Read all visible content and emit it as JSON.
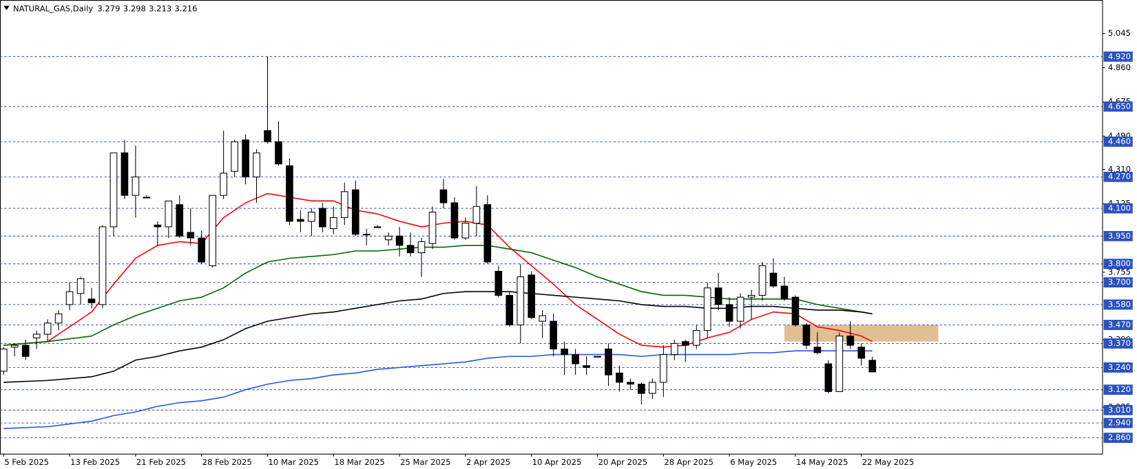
{
  "chart_data": {
    "type": "candlestick",
    "title": "NATURAL_GAS,Daily",
    "categories": [
      "5 Feb 2025",
      null,
      null,
      null,
      null,
      null,
      "13 Feb 2025",
      null,
      null,
      null,
      null,
      null,
      "21 Feb 2025",
      null,
      null,
      null,
      null,
      null,
      "28 Feb 2025",
      null,
      null,
      null,
      null,
      null,
      "10 Mar 2025",
      null,
      null,
      null,
      null,
      null,
      "18 Mar 2025",
      null,
      null,
      null,
      null,
      null,
      "25 Mar 2025",
      null,
      null,
      null,
      null,
      null,
      "2 Apr 2025",
      null,
      null,
      null,
      null,
      null,
      "10 Apr 2025",
      null,
      null,
      null,
      null,
      null,
      "20 Apr 2025",
      null,
      null,
      null,
      null,
      null,
      "28 Apr 2025",
      null,
      null,
      null,
      null,
      null,
      "6 May 2025",
      null,
      null,
      null,
      null,
      null,
      "14 May 2025",
      null,
      null,
      null,
      null,
      null,
      "22 May 2025",
      null
    ],
    "open": [
      3.22,
      3.35,
      3.36,
      3.4,
      3.42,
      3.48,
      3.58,
      3.64,
      3.61,
      3.58,
      4.0,
      4.4,
      4.17,
      4.16,
      4.01,
      4.0,
      4.12,
      3.97,
      3.94,
      3.79,
      4.17,
      4.3,
      4.47,
      4.27,
      4.52,
      4.46,
      4.33,
      4.04,
      4.03,
      4.1,
      3.99,
      4.05,
      4.2,
      3.96,
      4.0,
      3.93,
      3.95,
      3.9,
      3.86,
      3.91,
      4.2,
      4.13,
      3.94,
      4.02,
      4.12,
      3.76,
      3.63,
      3.47,
      3.74,
      3.49,
      3.49,
      3.34,
      3.31,
      3.25,
      3.3,
      3.34,
      3.21,
      3.16,
      3.15,
      3.1,
      3.16,
      3.31,
      3.38,
      3.36,
      3.44,
      3.67,
      3.58,
      3.49,
      3.62,
      3.63,
      3.75,
      3.68,
      3.62,
      3.47,
      3.35,
      3.26,
      3.11,
      3.41,
      3.35,
      3.279
    ],
    "high": [
      3.35,
      3.37,
      3.39,
      3.44,
      3.5,
      3.55,
      3.7,
      3.73,
      3.67,
      4.01,
      4.4,
      4.47,
      4.44,
      4.17,
      4.03,
      4.14,
      4.17,
      4.1,
      3.98,
      4.17,
      4.52,
      4.47,
      4.5,
      4.42,
      4.92,
      4.57,
      4.37,
      4.09,
      4.1,
      4.13,
      4.11,
      4.24,
      4.25,
      3.99,
      4.01,
      3.97,
      4.0,
      3.97,
      3.94,
      4.11,
      4.26,
      4.16,
      4.05,
      4.22,
      4.17,
      3.79,
      3.65,
      3.8,
      3.76,
      3.55,
      3.53,
      3.38,
      3.34,
      3.3,
      3.3,
      3.37,
      3.25,
      3.18,
      3.16,
      3.18,
      3.36,
      3.39,
      3.39,
      3.47,
      3.7,
      3.75,
      3.62,
      3.64,
      3.66,
      3.81,
      3.83,
      3.73,
      3.63,
      3.48,
      3.43,
      3.28,
      3.43,
      3.49,
      3.37,
      3.298
    ],
    "low": [
      3.2,
      3.3,
      3.28,
      3.34,
      3.38,
      3.44,
      3.55,
      3.58,
      3.56,
      3.56,
      3.95,
      4.15,
      4.05,
      4.16,
      3.9,
      3.94,
      3.94,
      3.9,
      3.8,
      3.78,
      4.15,
      4.27,
      4.23,
      4.13,
      4.45,
      4.33,
      4.01,
      3.97,
      3.95,
      3.97,
      3.96,
      4.01,
      3.95,
      3.9,
      4.0,
      3.9,
      3.84,
      3.84,
      3.73,
      3.88,
      4.1,
      3.93,
      3.93,
      3.95,
      3.8,
      3.62,
      3.46,
      3.37,
      3.5,
      3.4,
      3.3,
      3.2,
      3.2,
      3.2,
      3.3,
      3.14,
      3.11,
      3.12,
      3.04,
      3.07,
      3.08,
      3.28,
      3.27,
      3.34,
      3.4,
      3.55,
      3.46,
      3.45,
      3.5,
      3.6,
      3.67,
      3.6,
      3.46,
      3.34,
      3.31,
      3.1,
      3.11,
      3.34,
      3.25,
      3.213
    ],
    "close": [
      3.34,
      3.36,
      3.3,
      3.42,
      3.48,
      3.53,
      3.65,
      3.72,
      3.59,
      4.0,
      4.4,
      4.17,
      4.27,
      4.16,
      4.0,
      4.14,
      3.95,
      3.94,
      3.81,
      4.17,
      4.29,
      4.46,
      4.27,
      4.4,
      4.46,
      4.34,
      4.03,
      4.03,
      4.08,
      4.0,
      4.05,
      4.19,
      3.96,
      3.96,
      4.0,
      3.95,
      3.9,
      3.86,
      3.92,
      4.08,
      4.13,
      3.94,
      4.02,
      4.11,
      3.81,
      3.63,
      3.47,
      3.73,
      3.51,
      3.52,
      3.34,
      3.31,
      3.26,
      3.24,
      3.3,
      3.2,
      3.16,
      3.15,
      3.1,
      3.16,
      3.31,
      3.37,
      3.36,
      3.44,
      3.67,
      3.58,
      3.49,
      3.62,
      3.63,
      3.79,
      3.68,
      3.61,
      3.47,
      3.36,
      3.32,
      3.11,
      3.41,
      3.36,
      3.29,
      3.216
    ],
    "up_color": "#ffffff",
    "down_color": "#000000",
    "moving_averages": [
      {
        "color": "#ff0000",
        "x": [
          0,
          4,
          8,
          10,
          12,
          14,
          16,
          18,
          20,
          22,
          24,
          26,
          28,
          30,
          32,
          34,
          36,
          38,
          40,
          42,
          44,
          46,
          48,
          50,
          52,
          54,
          56,
          58,
          60,
          62,
          64,
          66,
          68,
          70,
          72,
          74,
          76,
          78,
          79
        ],
        "values": [
          3.36,
          3.38,
          3.54,
          3.69,
          3.83,
          3.9,
          3.92,
          3.91,
          4.05,
          4.13,
          4.18,
          4.16,
          4.14,
          4.14,
          4.09,
          4.07,
          4.03,
          4.0,
          4.02,
          4.03,
          4.01,
          3.89,
          3.79,
          3.69,
          3.58,
          3.5,
          3.42,
          3.36,
          3.35,
          3.36,
          3.4,
          3.43,
          3.5,
          3.54,
          3.53,
          3.46,
          3.44,
          3.41,
          3.38
        ]
      },
      {
        "color": "#006400",
        "x": [
          0,
          4,
          8,
          10,
          12,
          14,
          16,
          18,
          20,
          22,
          24,
          26,
          28,
          30,
          32,
          34,
          36,
          38,
          40,
          42,
          44,
          46,
          48,
          50,
          52,
          54,
          56,
          58,
          60,
          62,
          64,
          66,
          68,
          70,
          72,
          74,
          76,
          78,
          79
        ],
        "values": [
          3.36,
          3.38,
          3.41,
          3.47,
          3.52,
          3.56,
          3.6,
          3.62,
          3.67,
          3.75,
          3.81,
          3.83,
          3.84,
          3.85,
          3.87,
          3.87,
          3.88,
          3.89,
          3.89,
          3.9,
          3.9,
          3.88,
          3.86,
          3.82,
          3.78,
          3.73,
          3.69,
          3.65,
          3.63,
          3.63,
          3.62,
          3.61,
          3.61,
          3.61,
          3.61,
          3.58,
          3.56,
          3.54,
          3.53
        ]
      },
      {
        "color": "#000000",
        "x": [
          0,
          4,
          8,
          10,
          12,
          14,
          16,
          18,
          20,
          22,
          24,
          26,
          28,
          30,
          32,
          34,
          36,
          38,
          40,
          42,
          44,
          46,
          48,
          50,
          52,
          54,
          56,
          58,
          60,
          62,
          64,
          66,
          68,
          70,
          72,
          74,
          76,
          78,
          79
        ],
        "values": [
          3.16,
          3.17,
          3.19,
          3.22,
          3.28,
          3.3,
          3.33,
          3.35,
          3.39,
          3.45,
          3.49,
          3.51,
          3.53,
          3.54,
          3.56,
          3.58,
          3.6,
          3.61,
          3.64,
          3.65,
          3.65,
          3.65,
          3.64,
          3.63,
          3.62,
          3.61,
          3.6,
          3.58,
          3.57,
          3.57,
          3.56,
          3.56,
          3.57,
          3.57,
          3.56,
          3.55,
          3.55,
          3.54,
          3.53
        ]
      },
      {
        "color": "#2257e0",
        "x": [
          0,
          4,
          8,
          10,
          12,
          14,
          16,
          18,
          20,
          22,
          24,
          26,
          28,
          30,
          32,
          34,
          36,
          38,
          40,
          42,
          44,
          46,
          48,
          50,
          52,
          54,
          56,
          58,
          60,
          62,
          64,
          66,
          68,
          70,
          72,
          74,
          76,
          78,
          79
        ],
        "values": [
          2.91,
          2.92,
          2.95,
          2.98,
          3.0,
          3.03,
          3.05,
          3.06,
          3.08,
          3.12,
          3.15,
          3.17,
          3.18,
          3.2,
          3.21,
          3.23,
          3.24,
          3.25,
          3.26,
          3.27,
          3.29,
          3.3,
          3.3,
          3.31,
          3.31,
          3.31,
          3.31,
          3.3,
          3.31,
          3.31,
          3.31,
          3.31,
          3.32,
          3.32,
          3.33,
          3.33,
          3.33,
          3.33,
          3.33
        ]
      }
    ],
    "levels": [
      {
        "value": 4.92,
        "label": "4.920"
      },
      {
        "value": 4.65,
        "label": "4.650"
      },
      {
        "value": 4.46,
        "label": "4.460"
      },
      {
        "value": 4.27,
        "label": "4.270"
      },
      {
        "value": 4.1,
        "label": "4.100"
      },
      {
        "value": 3.95,
        "label": "3.950"
      },
      {
        "value": 3.8,
        "label": "3.800"
      },
      {
        "value": 3.7,
        "label": "3.700"
      },
      {
        "value": 3.58,
        "label": "3.580"
      },
      {
        "value": 3.47,
        "label": "3.470"
      },
      {
        "value": 3.37,
        "label": "3.370"
      },
      {
        "value": 3.24,
        "label": "3.240"
      },
      {
        "value": 3.12,
        "label": "3.120"
      },
      {
        "value": 3.01,
        "label": "3.010"
      },
      {
        "value": 2.94,
        "label": "2.940"
      },
      {
        "value": 2.86,
        "label": "2.860"
      }
    ],
    "level_color": "#2a52be",
    "zone": {
      "x": [
        71,
        85
      ],
      "y": [
        3.38,
        3.47
      ],
      "color": "#deb887"
    },
    "xlim": [
      -0.33,
      99.9
    ],
    "ylim": [
      2.774,
      5.218
    ],
    "yticks": [
      5.045,
      {
        "value": 4.86,
        "label": "4.860"
      },
      4.675,
      {
        "value": 4.49,
        "label": "4.490"
      },
      {
        "value": 4.31,
        "label": "4.310"
      },
      4.125,
      3.755,
      {
        "value": 3.39,
        "label": "3.390"
      },
      3.025
    ]
  }
}
